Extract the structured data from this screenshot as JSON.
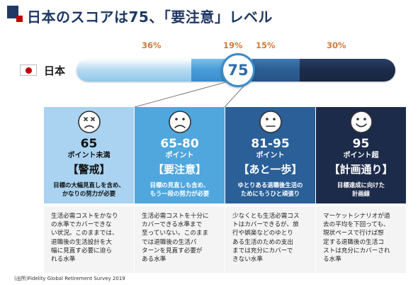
{
  "title": "日本のスコアは75、「要注意」レベル",
  "country": "日本",
  "score": "75",
  "percentages": [
    "36%",
    "19%",
    "15%",
    "30%"
  ],
  "columns": [
    {
      "face": "dizzy-face",
      "number": "65",
      "unit": "ポイント未満",
      "label": "【警戒】",
      "desc": [
        "目標の大幅見直しを含め、",
        "かなりの努力が必要"
      ],
      "detail": [
        "生活必需コストをかなり",
        "の水準でカバーできな",
        "い状況。このままでは、",
        "退職後の生活設計を大",
        "幅に見直す必要に迫ら",
        "れる水準"
      ]
    },
    {
      "face": "sad-face",
      "number": "65-80",
      "unit": "ポイント",
      "label": "【要注意】",
      "desc": [
        "目標の見直しも含め、",
        "もう一段の努力が必要"
      ],
      "detail": [
        "生活必需コストを十分に",
        "カバーできる水準まで",
        "至っていない。このまま",
        "では退職後の生活パ",
        "ターンを見直す必要が",
        "ある水準"
      ]
    },
    {
      "face": "neutral-face",
      "number": "81-95",
      "unit": "ポイント",
      "label": "【あと一歩】",
      "desc": [
        "ゆとりある退職後生活の",
        "ためにもうひと頑張り"
      ],
      "detail": [
        "少なくとも生活必需コス",
        "トはカバーできるが、旅",
        "行や娯楽などのゆとり",
        "ある生活のための支出",
        "までは充分にカバーで",
        "きない水準"
      ]
    },
    {
      "face": "smile-face",
      "number": "95",
      "unit": "ポイント超",
      "label": "【計画通り】",
      "desc": [
        "目標達成に向けた",
        "計画線"
      ],
      "detail": [
        "マーケットシナリオが過",
        "去の平均を下回っても、",
        "現状ペースで行けば想",
        "定する退職後の生活コ",
        "ストは充分にカバーされ",
        "る水準"
      ]
    }
  ],
  "source": "(出所)Fidelity Global Retirement Survey 2019",
  "colors": {
    "navy": "#1f3864",
    "red": "#c00000",
    "percent_orange": "#d07a3a",
    "col1": "#a9d3f0",
    "col2": "#4fa7de",
    "col3": "#2a5f97",
    "col4": "#1d2b4a"
  }
}
